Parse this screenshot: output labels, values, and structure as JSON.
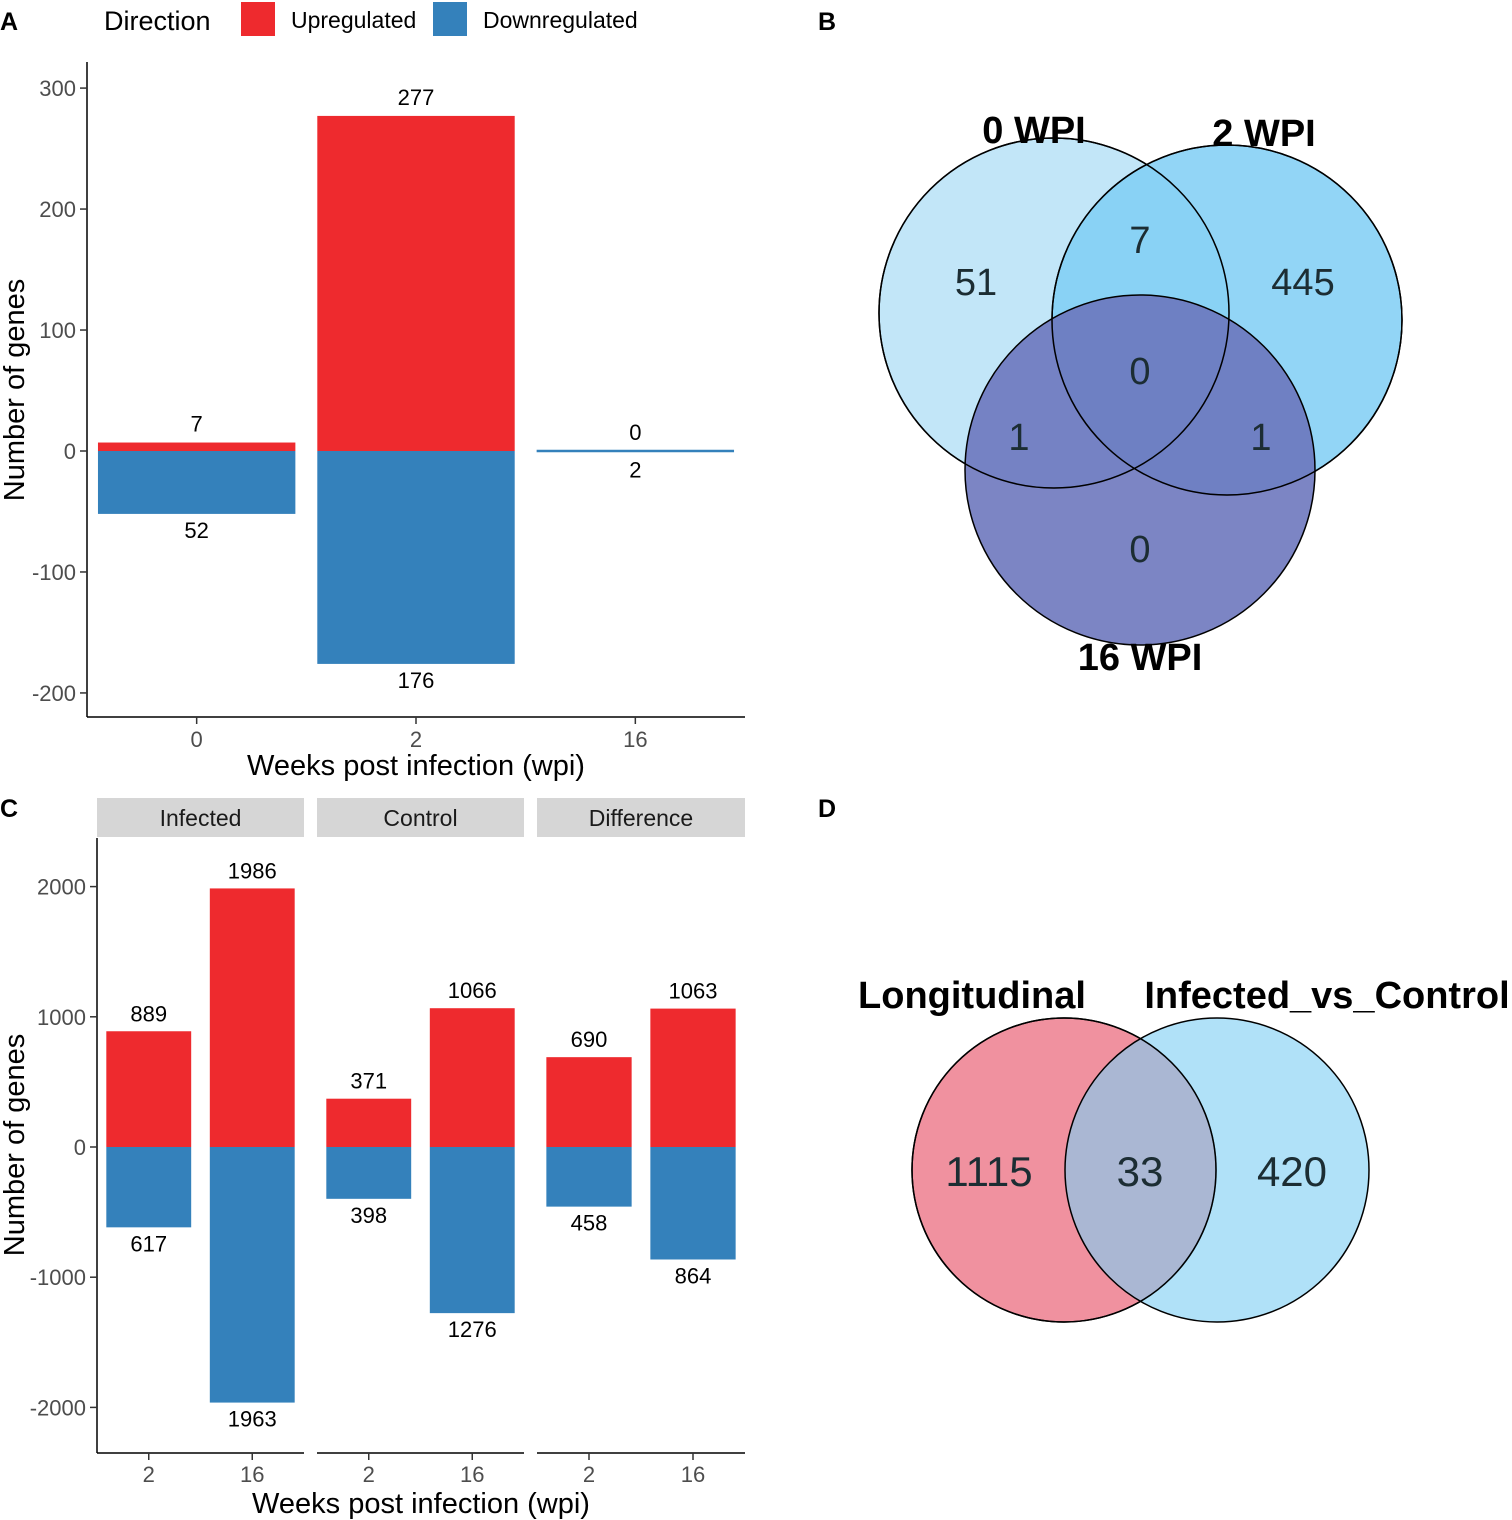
{
  "colors": {
    "up": "#EE2A2E",
    "down": "#3481BB",
    "axis": "#000000",
    "tick_text": "#4d4d4d",
    "strip_bg": "#D6D6D6",
    "venn_b": [
      "#C2E6F8",
      "#7FCEF4",
      "#6A74BC"
    ],
    "venn_d": [
      "#F0919F",
      "#7FCEF4"
    ]
  },
  "panels": {
    "a": "A",
    "b": "B",
    "c": "C",
    "d": "D"
  },
  "legend": {
    "title": "Direction",
    "items": [
      {
        "label": "Upregulated",
        "color": "#EE2A2E"
      },
      {
        "label": "Downregulated",
        "color": "#3481BB"
      }
    ]
  },
  "chart_data": [
    {
      "id": "A",
      "type": "bar",
      "stacked": true,
      "xlabel": "Weeks post infection (wpi)",
      "ylabel": "Number of genes",
      "categories": [
        "0",
        "2",
        "16"
      ],
      "ylim": [
        -210,
        320
      ],
      "yticks": [
        -200,
        -100,
        0,
        100,
        200,
        300
      ],
      "ytick_labels": [
        "-200",
        "-100",
        "0",
        "100",
        "200",
        "300"
      ],
      "series": [
        {
          "name": "Upregulated",
          "values": [
            7,
            277,
            0
          ],
          "labels": [
            "7",
            "277",
            "0"
          ]
        },
        {
          "name": "Downregulated",
          "values": [
            -52,
            -176,
            -2
          ],
          "labels": [
            "52",
            "176",
            "2"
          ]
        }
      ]
    },
    {
      "id": "C",
      "type": "bar",
      "stacked": true,
      "faceted": true,
      "xlabel": "Weeks post infection (wpi)",
      "ylabel": "Number of genes",
      "ylim": [
        -2300,
        2300
      ],
      "yticks": [
        -2000,
        -1000,
        0,
        1000,
        2000
      ],
      "ytick_labels": [
        "-2000",
        "-1000",
        "0",
        "1000",
        "2000"
      ],
      "facets": [
        {
          "name": "Infected",
          "categories": [
            "2",
            "16"
          ],
          "up": [
            889,
            1986
          ],
          "down": [
            617,
            1963
          ]
        },
        {
          "name": "Control",
          "categories": [
            "2",
            "16"
          ],
          "up": [
            371,
            1066
          ],
          "down": [
            398,
            1276
          ]
        },
        {
          "name": "Difference",
          "categories": [
            "2",
            "16"
          ],
          "up": [
            690,
            1063
          ],
          "down": [
            458,
            864
          ]
        }
      ]
    }
  ],
  "venn_b": {
    "sets": [
      "0 WPI",
      "2 WPI",
      "16 WPI"
    ],
    "regions": {
      "only_0": "51",
      "only_2": "445",
      "only_16": "0",
      "0_and_2": "7",
      "0_and_16": "1",
      "2_and_16": "1",
      "all": "0"
    }
  },
  "venn_d": {
    "sets": [
      "Longitudinal",
      "Infected_vs_Control"
    ],
    "regions": {
      "left_only": "1115",
      "both": "33",
      "right_only": "420"
    }
  }
}
